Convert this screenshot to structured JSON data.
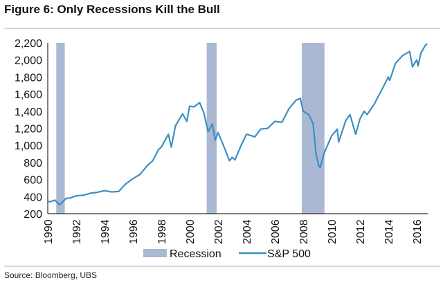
{
  "title": "Figure 6: Only Recessions Kill the Bull",
  "source": "Source:  Bloomberg, UBS",
  "chart_data": {
    "type": "line",
    "title": "Figure 6: Only Recessions Kill the Bull",
    "xlabel": "",
    "ylabel": "",
    "xlim": [
      1990,
      2016.8
    ],
    "ylim": [
      200,
      2200
    ],
    "yticks": [
      200,
      400,
      600,
      800,
      1000,
      1200,
      1400,
      1600,
      1800,
      2000,
      2200
    ],
    "ytick_labels": [
      "200",
      "400",
      "600",
      "800",
      "1,000",
      "1,200",
      "1,400",
      "1,600",
      "1,800",
      "2,000",
      "2,200"
    ],
    "xticks": [
      1990,
      1992,
      1994,
      1996,
      1998,
      2000,
      2002,
      2004,
      2006,
      2008,
      2010,
      2012,
      2014,
      2016
    ],
    "xtick_labels": [
      "1990",
      "1992",
      "1994",
      "1996",
      "1998",
      "2000",
      "2002",
      "2004",
      "2006",
      "2008",
      "2010",
      "2012",
      "2014",
      "2016"
    ],
    "legend": {
      "placement": "bottom",
      "entries": [
        "Recession",
        "S&P 500"
      ]
    },
    "colors": {
      "recession": "#aab8d4",
      "sp500": "#3b8fc4"
    },
    "recessions": [
      [
        1990.6,
        1991.2
      ],
      [
        2001.2,
        2001.9
      ],
      [
        2007.9,
        2009.5
      ]
    ],
    "series": [
      {
        "name": "S&P 500",
        "x": [
          1990,
          1990.3,
          1990.5,
          1990.8,
          1991,
          1991.3,
          1991.6,
          1992,
          1992.5,
          1993,
          1993.5,
          1994,
          1994.5,
          1995,
          1995.5,
          1996,
          1996.5,
          1997,
          1997.4,
          1997.8,
          1998,
          1998.5,
          1998.7,
          1999,
          1999.5,
          1999.8,
          2000,
          2000.3,
          2000.7,
          2001,
          2001.3,
          2001.6,
          2001.8,
          2002,
          2002.5,
          2002.8,
          2003,
          2003.2,
          2003.6,
          2004,
          2004.6,
          2005,
          2005.5,
          2006,
          2006.5,
          2007,
          2007.5,
          2007.8,
          2008,
          2008.4,
          2008.7,
          2008.9,
          2009.1,
          2009.2,
          2009.5,
          2010,
          2010.4,
          2010.5,
          2011,
          2011.3,
          2011.7,
          2012,
          2012.3,
          2012.5,
          2013,
          2013.5,
          2014,
          2014.1,
          2014.5,
          2015,
          2015.5,
          2015.7,
          2016,
          2016.1,
          2016.3,
          2016.6,
          2016.75
        ],
        "values": [
          340,
          345,
          360,
          305,
          330,
          380,
          385,
          410,
          415,
          440,
          450,
          470,
          455,
          460,
          550,
          610,
          660,
          760,
          820,
          950,
          980,
          1130,
          980,
          1230,
          1370,
          1280,
          1460,
          1450,
          1500,
          1380,
          1160,
          1250,
          1060,
          1150,
          950,
          820,
          860,
          830,
          990,
          1130,
          1100,
          1190,
          1200,
          1280,
          1270,
          1430,
          1530,
          1550,
          1400,
          1360,
          1250,
          900,
          760,
          740,
          920,
          1110,
          1190,
          1040,
          1290,
          1360,
          1130,
          1310,
          1400,
          1360,
          1480,
          1640,
          1800,
          1760,
          1960,
          2050,
          2100,
          1920,
          2000,
          1930,
          2080,
          2170,
          2190
        ]
      }
    ]
  }
}
